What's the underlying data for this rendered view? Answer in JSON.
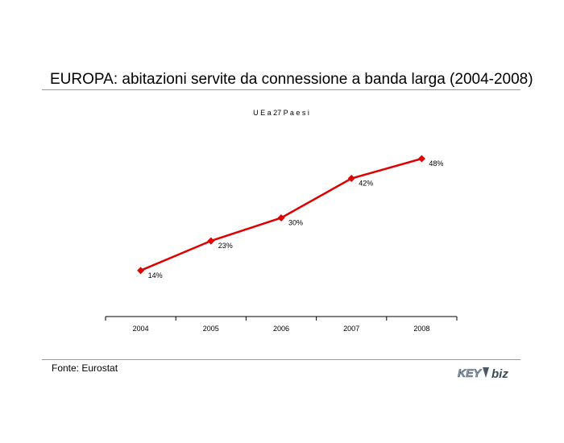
{
  "page": {
    "title": "EUROPA: abitazioni servite da connessione a banda larga (2004-2008)",
    "source": "Fonte: Eurostat",
    "logo_text": "KEY4biz"
  },
  "chart_data": {
    "type": "line",
    "subtitle": "U E  a  27  P a e s i",
    "categories": [
      "2004",
      "2005",
      "2006",
      "2007",
      "2008"
    ],
    "series": [
      {
        "values": [
          14,
          23,
          30,
          42,
          48
        ],
        "labels": [
          "14%",
          "23%",
          "30%",
          "42%",
          "48%"
        ],
        "color": "#e00000"
      }
    ],
    "ylim": [
      0,
      60
    ],
    "grid": false,
    "legend": "none"
  }
}
